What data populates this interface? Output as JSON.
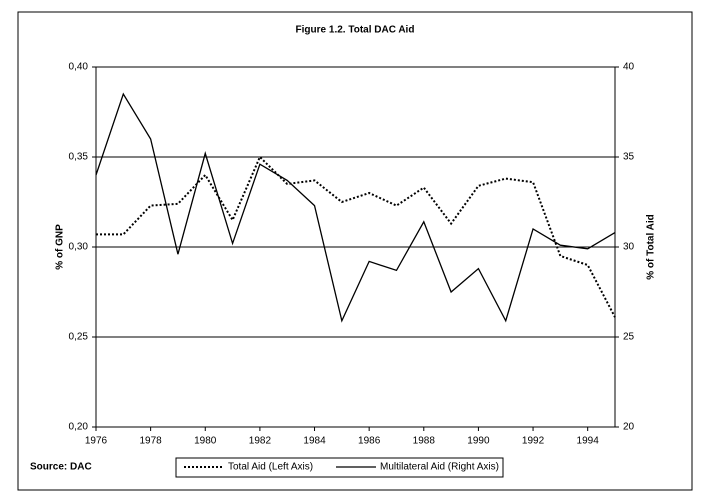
{
  "chart_data": {
    "type": "line",
    "title": "Figure 1.2. Total DAC Aid",
    "y_label": "% of GNP",
    "y2_label": "% of Total Aid",
    "source": "Source: DAC",
    "x": [
      1976,
      1977,
      1978,
      1979,
      1980,
      1981,
      1982,
      1983,
      1984,
      1985,
      1986,
      1987,
      1988,
      1989,
      1990,
      1991,
      1992,
      1993,
      1994,
      1995
    ],
    "xlim": [
      1976,
      1995
    ],
    "xticks": [
      1976,
      1978,
      1980,
      1982,
      1984,
      1986,
      1988,
      1990,
      1992,
      1994
    ],
    "ylim": [
      0.2,
      0.4
    ],
    "yticks": [
      {
        "value": 0.2,
        "label": "0,20"
      },
      {
        "value": 0.25,
        "label": "0,25"
      },
      {
        "value": 0.3,
        "label": "0,30"
      },
      {
        "value": 0.35,
        "label": "0,35"
      },
      {
        "value": 0.4,
        "label": "0,40"
      }
    ],
    "y2lim": [
      20,
      40
    ],
    "y2ticks": [
      20,
      25,
      30,
      35,
      40
    ],
    "grid": true,
    "legend": "bottom",
    "series": [
      {
        "name": "Total Aid (Left Axis)",
        "color": "#000000",
        "dash": "dotted",
        "values": [
          0.307,
          0.307,
          0.323,
          0.324,
          0.34,
          0.315,
          0.35,
          0.335,
          0.337,
          0.325,
          0.33,
          0.323,
          0.333,
          0.313,
          0.334,
          0.338,
          0.336,
          0.295,
          0.29,
          0.261
        ]
      },
      {
        "name": "Multilateral Aid (Right Axis)",
        "color": "#000000",
        "dash": "solid",
        "axis": "y2",
        "values": [
          34.0,
          38.5,
          36.0,
          29.6,
          35.2,
          30.2,
          34.6,
          33.7,
          32.3,
          25.9,
          29.2,
          28.7,
          31.4,
          27.5,
          28.8,
          25.9,
          31.0,
          30.1,
          29.9,
          30.8
        ]
      }
    ]
  }
}
